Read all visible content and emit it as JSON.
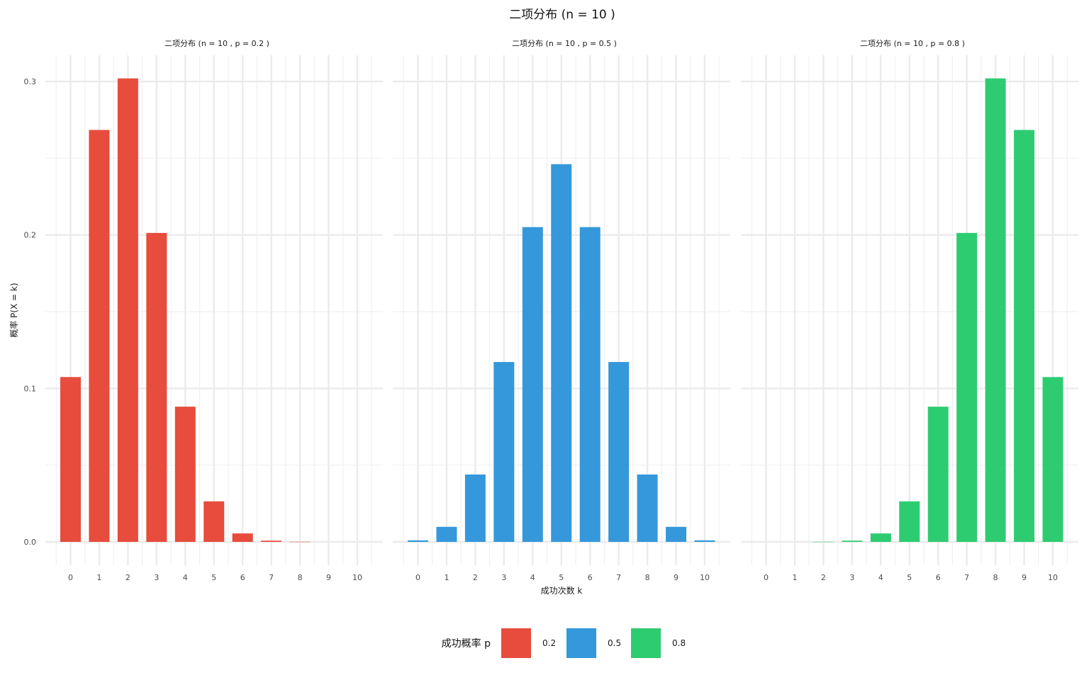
{
  "chart_data": {
    "type": "bar",
    "title": "二项分布 (n = 10 )",
    "xlabel": "成功次数 k",
    "ylabel": "概率 P(X = k)",
    "ylim": [
      0,
      0.3
    ],
    "y_ticks": [
      "0.0",
      "0.1",
      "0.2",
      "0.3"
    ],
    "categories": [
      "0",
      "1",
      "2",
      "3",
      "4",
      "5",
      "6",
      "7",
      "8",
      "9",
      "10"
    ],
    "grid": true,
    "legend": {
      "title": "成功概率 p",
      "position": "bottom",
      "entries": [
        {
          "label": "0.2",
          "color": "#E74C3C"
        },
        {
          "label": "0.5",
          "color": "#3498DB"
        },
        {
          "label": "0.8",
          "color": "#2ECC71"
        }
      ]
    },
    "panels": [
      {
        "strip": "二项分布 (n = 10 , p = 0.2 )",
        "p": "0.2",
        "color": "#E74C3C",
        "values": [
          0.1074,
          0.2684,
          0.302,
          0.2013,
          0.0881,
          0.0264,
          0.0055,
          0.0008,
          0.0001,
          0.0,
          0.0
        ]
      },
      {
        "strip": "二项分布 (n = 10 , p = 0.5 )",
        "p": "0.5",
        "color": "#3498DB",
        "values": [
          0.001,
          0.0098,
          0.0439,
          0.1172,
          0.2051,
          0.2461,
          0.2051,
          0.1172,
          0.0439,
          0.0098,
          0.001
        ]
      },
      {
        "strip": "二项分布 (n = 10 , p = 0.8 )",
        "p": "0.8",
        "color": "#2ECC71",
        "values": [
          0.0,
          0.0,
          0.0001,
          0.0008,
          0.0055,
          0.0264,
          0.0881,
          0.2013,
          0.302,
          0.2684,
          0.1074
        ]
      }
    ]
  }
}
